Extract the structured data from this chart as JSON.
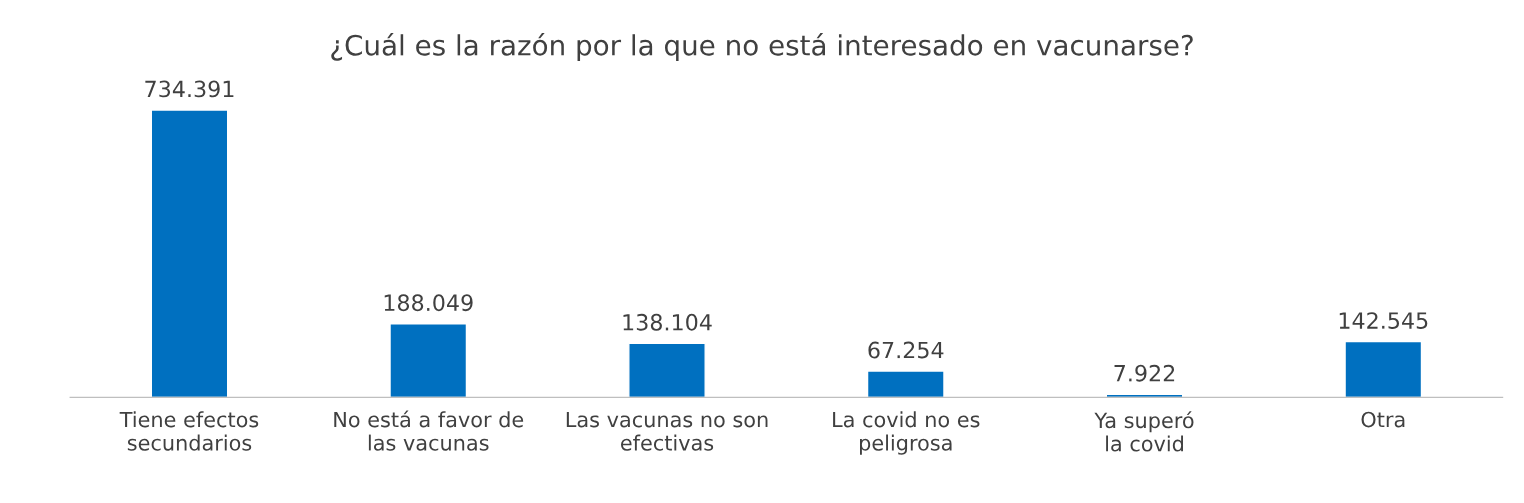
{
  "chart_data": {
    "type": "bar",
    "title": "¿Cuál es la razón por la que no está interesado en vacunarse?",
    "categories": [
      "Tiene efectos\nsecundarios",
      "No está a favor de\nlas vacunas",
      "Las vacunas no son\nefectivas",
      "La covid no es\npeligrosa",
      "Ya superó\nla covid",
      "Otra"
    ],
    "values": [
      734391,
      188049,
      138104,
      67254,
      7922,
      142545
    ],
    "value_labels": [
      "734.391",
      "188.049",
      "138.104",
      "67.254",
      "7.922",
      "142.545"
    ],
    "color": "#0070c0",
    "grid": false,
    "legend": false
  }
}
